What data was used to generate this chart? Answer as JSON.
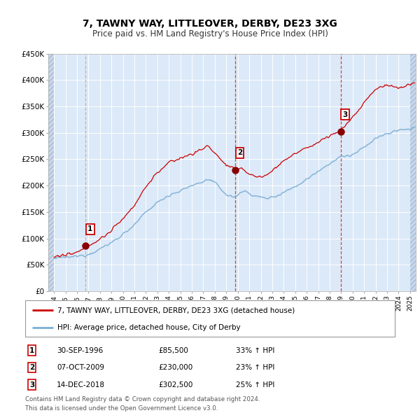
{
  "title": "7, TAWNY WAY, LITTLEOVER, DERBY, DE23 3XG",
  "subtitle": "Price paid vs. HM Land Registry's House Price Index (HPI)",
  "ylim": [
    0,
    450000
  ],
  "yticks": [
    0,
    50000,
    100000,
    150000,
    200000,
    250000,
    300000,
    350000,
    400000,
    450000
  ],
  "ytick_labels": [
    "£0",
    "£50K",
    "£100K",
    "£150K",
    "£200K",
    "£250K",
    "£300K",
    "£350K",
    "£400K",
    "£450K"
  ],
  "bg_color": "#dce9f8",
  "red_line_color": "#cc0000",
  "blue_line_color": "#7bafd4",
  "marker_color": "#880000",
  "vline1_x": 1996.75,
  "vline2_x": 2009.77,
  "vline3_x": 2018.96,
  "sale1": {
    "date": "30-SEP-1996",
    "price": 85500,
    "hpi_pct": "33%",
    "x": 1996.75
  },
  "sale2": {
    "date": "07-OCT-2009",
    "price": 230000,
    "hpi_pct": "23%",
    "x": 2009.77
  },
  "sale3": {
    "date": "14-DEC-2018",
    "price": 302500,
    "hpi_pct": "25%",
    "x": 2018.96
  },
  "legend_red": "7, TAWNY WAY, LITTLEOVER, DERBY, DE23 3XG (detached house)",
  "legend_blue": "HPI: Average price, detached house, City of Derby",
  "footnote": "Contains HM Land Registry data © Crown copyright and database right 2024.\nThis data is licensed under the Open Government Licence v3.0.",
  "xlim_left": 1993.5,
  "xlim_right": 2025.5,
  "xtick_start": 1994,
  "xtick_end": 2025
}
